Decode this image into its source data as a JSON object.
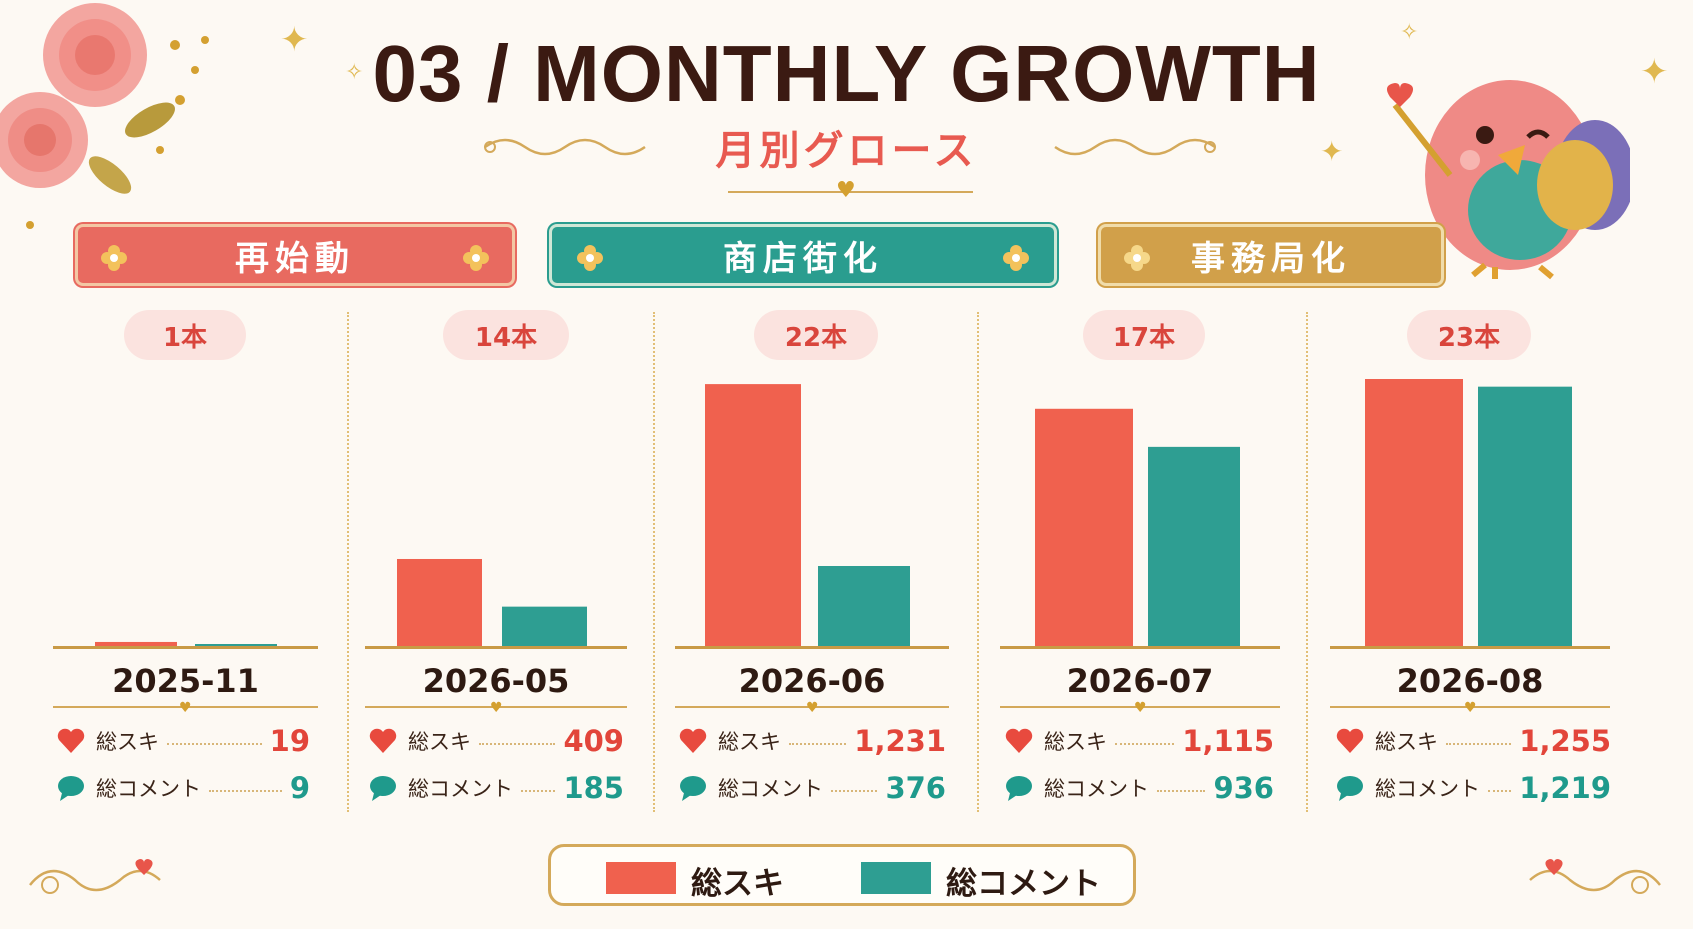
{
  "header": {
    "title": "03 / MONTHLY GROWTH",
    "subtitle": "月別グロース"
  },
  "phases": [
    {
      "label": "再始動",
      "color": "#e86a60"
    },
    {
      "label": "商店街化",
      "color": "#2a9d8f"
    },
    {
      "label": "事務局化",
      "color": "#d1a04a"
    }
  ],
  "stat_labels": {
    "likes": "総スキ",
    "comments": "総コメント"
  },
  "colors": {
    "likes": "#f0614e",
    "comments": "#2e9e92",
    "gold": "#d4a95a"
  },
  "chart_data": {
    "type": "bar",
    "title": "03 / MONTHLY GROWTH",
    "subtitle": "月別グロース",
    "categories": [
      "2025-11",
      "2026-05",
      "2026-06",
      "2026-07",
      "2026-08"
    ],
    "article_counts": [
      "1本",
      "14本",
      "22本",
      "17本",
      "23本"
    ],
    "series": [
      {
        "name": "総スキ",
        "values": [
          19,
          409,
          1231,
          1115,
          1255
        ],
        "labels": [
          "19",
          "409",
          "1,231",
          "1,115",
          "1,255"
        ]
      },
      {
        "name": "総コメント",
        "values": [
          9,
          185,
          376,
          936,
          1219
        ],
        "labels": [
          "9",
          "185",
          "376",
          "936",
          "1,219"
        ]
      }
    ],
    "ylim": [
      0,
      1255
    ],
    "grid": false,
    "legend": "bottom-center"
  }
}
